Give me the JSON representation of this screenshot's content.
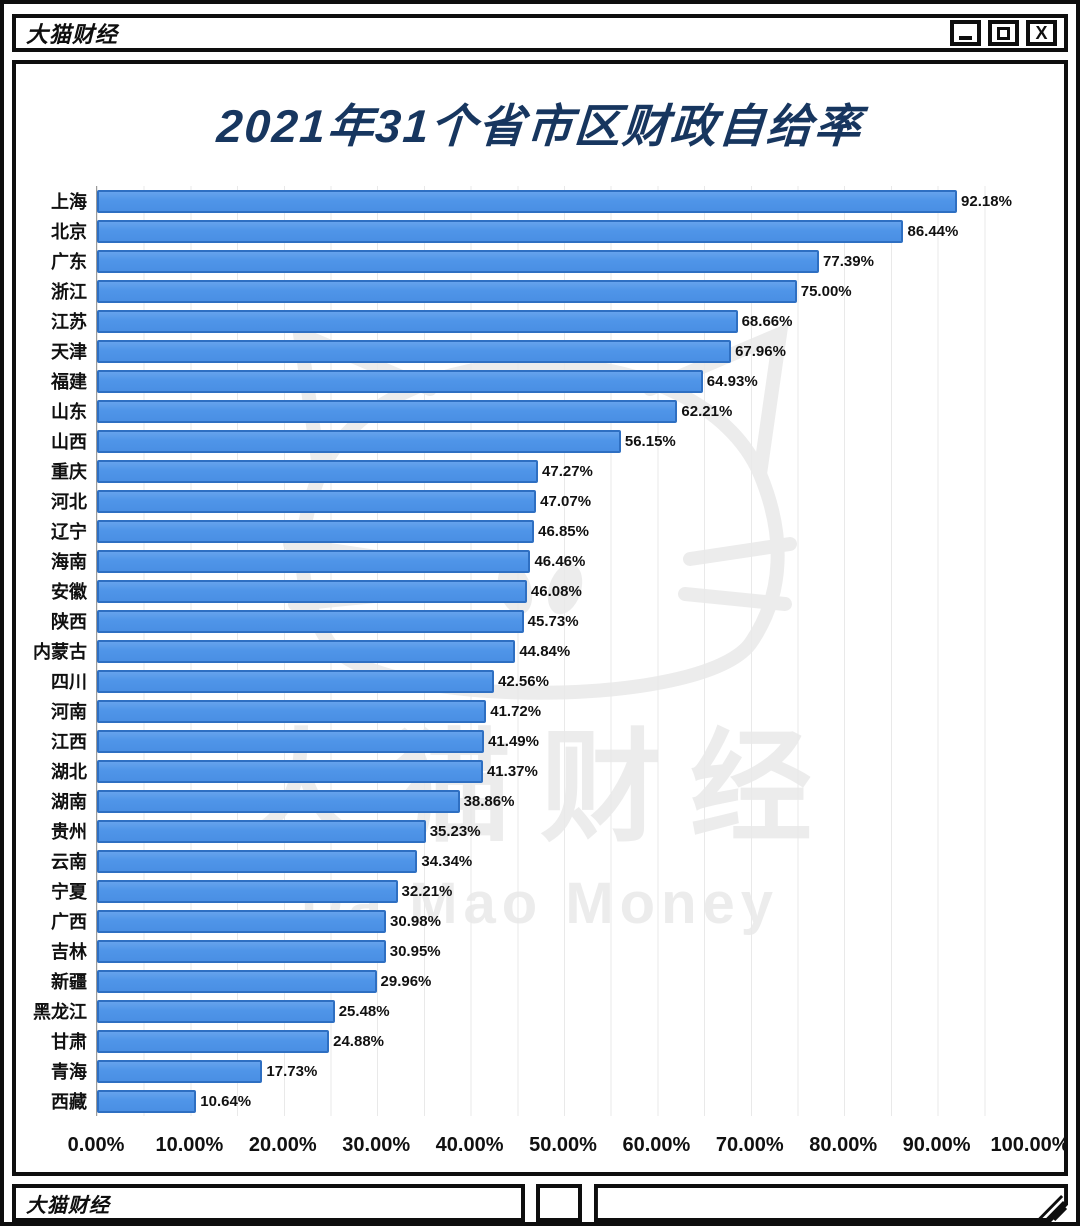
{
  "window": {
    "titlebar": {
      "title": "大猫财经"
    },
    "controls": {
      "items": [
        "minimize-button",
        "maximize-button",
        "close-button"
      ],
      "close_label": "X"
    },
    "statusbar": {
      "left_text": "大猫财经"
    }
  },
  "watermark": {
    "cn": "大猫财经",
    "en": "Da Mao Money",
    "icon": "cat-face-outline"
  },
  "chart_data": {
    "type": "bar",
    "orientation": "horizontal",
    "title": "2021年31个省市区财政自给率",
    "title_color": "#17365f",
    "bar_color": "#4f95e8",
    "bar_border_color": "#2e6fc2",
    "grid": true,
    "legend": false,
    "xlim": [
      0,
      100
    ],
    "x_ticks": [
      "0.00%",
      "10.00%",
      "20.00%",
      "30.00%",
      "40.00%",
      "50.00%",
      "60.00%",
      "70.00%",
      "80.00%",
      "90.00%",
      "100.00%"
    ],
    "categories": [
      "上海",
      "北京",
      "广东",
      "浙江",
      "江苏",
      "天津",
      "福建",
      "山东",
      "山西",
      "重庆",
      "河北",
      "辽宁",
      "海南",
      "安徽",
      "陕西",
      "内蒙古",
      "四川",
      "河南",
      "江西",
      "湖北",
      "湖南",
      "贵州",
      "云南",
      "宁夏",
      "广西",
      "吉林",
      "新疆",
      "黑龙江",
      "甘肃",
      "青海",
      "西藏"
    ],
    "values": [
      92.18,
      86.44,
      77.39,
      75.0,
      68.66,
      67.96,
      64.93,
      62.21,
      56.15,
      47.27,
      47.07,
      46.85,
      46.46,
      46.08,
      45.73,
      44.84,
      42.56,
      41.72,
      41.49,
      41.37,
      38.86,
      35.23,
      34.34,
      32.21,
      30.98,
      30.95,
      29.96,
      25.48,
      24.88,
      17.73,
      10.64
    ],
    "value_labels": [
      "92.18%",
      "86.44%",
      "77.39%",
      "75.00%",
      "68.66%",
      "67.96%",
      "64.93%",
      "62.21%",
      "56.15%",
      "47.27%",
      "47.07%",
      "46.85%",
      "46.46%",
      "46.08%",
      "45.73%",
      "44.84%",
      "42.56%",
      "41.72%",
      "41.49%",
      "41.37%",
      "38.86%",
      "35.23%",
      "34.34%",
      "32.21%",
      "30.98%",
      "30.95%",
      "29.96%",
      "25.48%",
      "24.88%",
      "17.73%",
      "10.64%"
    ]
  }
}
